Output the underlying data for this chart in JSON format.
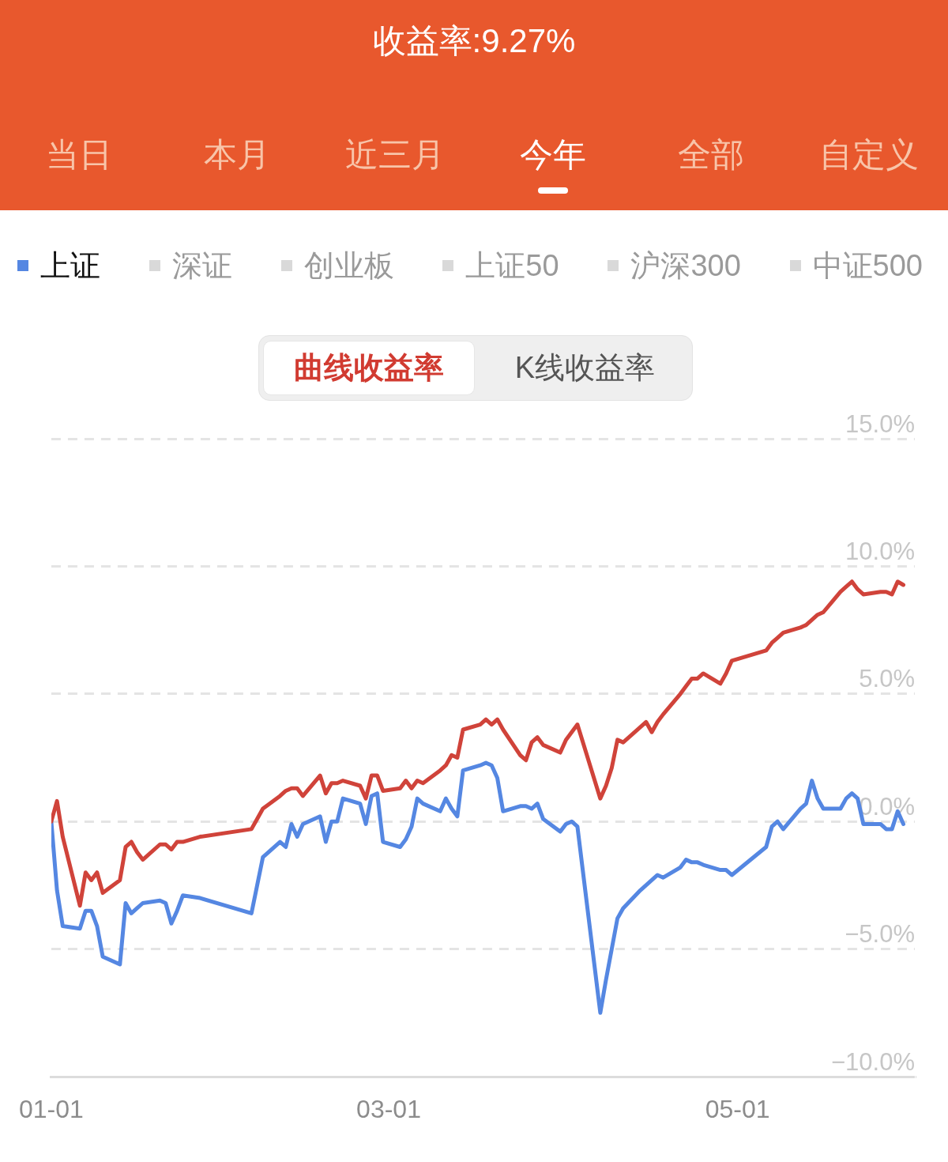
{
  "chart_data": {
    "type": "line",
    "title": "收益率:9.27%",
    "annotations": [
      "当日",
      "本月",
      "近三月",
      "今年",
      "全部",
      "自定义",
      "深证",
      "创业板",
      "上证50",
      "沪深300",
      "中证500",
      "曲线收益率",
      "K线收益率"
    ],
    "x": [
      "--01-01",
      "--01-02",
      "--01-03",
      "--01-06",
      "--01-07",
      "--01-08",
      "--01-09",
      "--01-10",
      "--01-13",
      "--01-14",
      "--01-15",
      "--01-16",
      "--01-17",
      "--01-20",
      "--01-21",
      "--01-22",
      "--01-23",
      "--01-24",
      "--01-27",
      "--02-05",
      "--02-06",
      "--02-07",
      "--02-10",
      "--02-11",
      "--02-12",
      "--02-13",
      "--02-14",
      "--02-17",
      "--02-18",
      "--02-19",
      "--02-20",
      "--02-21",
      "--02-24",
      "--02-25",
      "--02-26",
      "--02-27",
      "--02-28",
      "--03-03",
      "--03-04",
      "--03-05",
      "--03-06",
      "--03-07",
      "--03-10",
      "--03-11",
      "--03-12",
      "--03-13",
      "--03-14",
      "--03-17",
      "--03-18",
      "--03-19",
      "--03-20",
      "--03-21",
      "--03-24",
      "--03-25",
      "--03-26",
      "--03-27",
      "--03-28",
      "--03-31",
      "--04-01",
      "--04-02",
      "--04-03",
      "--04-07",
      "--04-08",
      "--04-09",
      "--04-10",
      "--04-11",
      "--04-14",
      "--04-15",
      "--04-16",
      "--04-17",
      "--04-18",
      "--04-21",
      "--04-22",
      "--04-23",
      "--04-24",
      "--04-25",
      "--04-28",
      "--04-29",
      "--04-30",
      "--05-06",
      "--05-07",
      "--05-08",
      "--05-09",
      "--05-12",
      "--05-13",
      "--05-14",
      "--05-15",
      "--05-16",
      "--05-19",
      "--05-20",
      "--05-21",
      "--05-22",
      "--05-23",
      "--05-26",
      "--05-27",
      "--05-28",
      "--05-29",
      "--05-30"
    ],
    "series": [
      {
        "color": "#d0433a",
        "values": [
          0,
          0.8,
          -0.6,
          -3.3,
          -2.0,
          -2.3,
          -2.0,
          -2.8,
          -2.3,
          -1.0,
          -0.8,
          -1.2,
          -1.5,
          -0.9,
          -0.9,
          -1.1,
          -0.8,
          -0.8,
          -0.6,
          -0.3,
          0.1,
          0.5,
          1.0,
          1.2,
          1.3,
          1.3,
          1.0,
          1.8,
          1.1,
          1.5,
          1.5,
          1.6,
          1.4,
          0.9,
          1.8,
          1.8,
          1.2,
          1.3,
          1.6,
          1.3,
          1.6,
          1.5,
          2.0,
          2.2,
          2.6,
          2.5,
          3.6,
          3.8,
          4.0,
          3.8,
          4.0,
          3.6,
          2.6,
          2.4,
          3.1,
          3.3,
          3.0,
          2.7,
          3.2,
          3.5,
          3.8,
          0.9,
          1.4,
          2.1,
          3.2,
          3.1,
          3.7,
          3.9,
          3.5,
          3.9,
          4.2,
          5.0,
          5.3,
          5.6,
          5.6,
          5.8,
          5.4,
          5.8,
          6.3,
          6.7,
          7.0,
          7.2,
          7.4,
          7.6,
          7.7,
          7.9,
          8.1,
          8.2,
          9.0,
          9.2,
          9.4,
          9.1,
          8.9,
          9.0,
          9.0,
          8.9,
          9.4,
          9.27
        ]
      },
      {
        "name": "上证",
        "color": "#5587e2",
        "values": [
          0,
          -2.7,
          -4.1,
          -4.2,
          -3.5,
          -3.5,
          -4.1,
          -5.3,
          -5.6,
          -3.2,
          -3.6,
          -3.4,
          -3.2,
          -3.1,
          -3.2,
          -4.0,
          -3.5,
          -2.9,
          -3.0,
          -3.6,
          -2.5,
          -1.4,
          -0.8,
          -1.0,
          -0.1,
          -0.6,
          -0.1,
          0.2,
          -0.8,
          0.0,
          0.0,
          0.9,
          0.7,
          -0.1,
          1.0,
          1.1,
          -0.8,
          -1.0,
          -0.7,
          -0.2,
          0.9,
          0.7,
          0.4,
          0.9,
          0.5,
          0.2,
          2.0,
          2.2,
          2.3,
          2.2,
          1.7,
          0.4,
          0.6,
          0.6,
          0.5,
          0.7,
          0.1,
          -0.4,
          -0.1,
          0.0,
          -0.2,
          -7.5,
          -6.2,
          -5.0,
          -3.8,
          -3.4,
          -2.7,
          -2.5,
          -2.3,
          -2.1,
          -2.2,
          -1.8,
          -1.5,
          -1.6,
          -1.6,
          -1.7,
          -1.9,
          -1.9,
          -2.1,
          -1.0,
          -0.2,
          0.0,
          -0.3,
          0.5,
          0.7,
          1.6,
          0.9,
          0.5,
          0.5,
          0.9,
          1.1,
          0.9,
          -0.1,
          -0.1,
          -0.3,
          -0.3,
          0.4,
          -0.1
        ]
      }
    ],
    "xlim": [
      "--01-01",
      "--06-01"
    ],
    "xticks": [
      {
        "value": "--01-01",
        "label": "01-01"
      },
      {
        "value": "--03-01",
        "label": "03-01"
      },
      {
        "value": "--05-01",
        "label": "05-01"
      }
    ],
    "ylim": [
      -10,
      15
    ],
    "yticks": [
      {
        "value": -10,
        "label": "−10.0%"
      },
      {
        "value": -5,
        "label": "−5.0%"
      },
      {
        "value": 0,
        "label": "0.0%"
      },
      {
        "value": 5,
        "label": "5.0%"
      },
      {
        "value": 10,
        "label": "10.0%"
      },
      {
        "value": 15,
        "label": "15.0%"
      }
    ],
    "grid": "y",
    "legend": "top",
    "marker": "none"
  }
}
